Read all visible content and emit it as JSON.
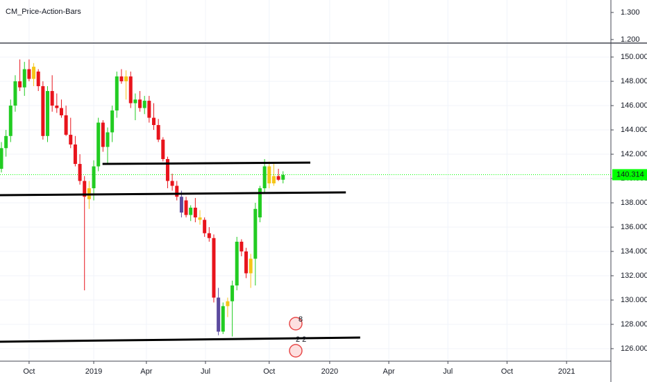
{
  "chart_data": {
    "type": "candlestick",
    "indicator": {
      "title": "CM_Price-Action-Bars",
      "ylim": [
        1.187,
        1.346
      ],
      "yticks": [
        {
          "value": 1.3,
          "label": "1.300"
        },
        {
          "value": 1.2,
          "label": "1.200"
        }
      ]
    },
    "ylim": [
      124.97,
      151.09
    ],
    "yticks": [
      {
        "value": 150,
        "label": "150.000"
      },
      {
        "value": 148,
        "label": "148.000"
      },
      {
        "value": 146,
        "label": "146.000"
      },
      {
        "value": 144,
        "label": "144.000"
      },
      {
        "value": 142,
        "label": "142.000"
      },
      {
        "value": 140,
        "label": "140.000"
      },
      {
        "value": 138,
        "label": "138.000"
      },
      {
        "value": 136,
        "label": "136.000"
      },
      {
        "value": 134,
        "label": "134.000"
      },
      {
        "value": 132,
        "label": "132.000"
      },
      {
        "value": 130,
        "label": "130.000"
      },
      {
        "value": 128,
        "label": "128.000"
      },
      {
        "value": 126,
        "label": "126.000"
      }
    ],
    "xlim": [
      -6.3,
      126
    ],
    "xticks": [
      {
        "value": 0,
        "label": "Oct"
      },
      {
        "value": 14,
        "label": "2019"
      },
      {
        "value": 25.4,
        "label": "Apr"
      },
      {
        "value": 38.2,
        "label": "Jul"
      },
      {
        "value": 52,
        "label": "Oct"
      },
      {
        "value": 65.1,
        "label": "2020"
      },
      {
        "value": 77.9,
        "label": "Apr"
      },
      {
        "value": 90.7,
        "label": "Jul"
      },
      {
        "value": 103.5,
        "label": "Oct"
      },
      {
        "value": 116.4,
        "label": "2021"
      }
    ],
    "grid": true,
    "x": [
      -6,
      -5,
      -4,
      -3,
      -2,
      -1,
      0,
      1,
      2,
      3,
      4,
      5,
      6,
      7,
      8,
      9,
      10,
      11,
      12,
      13,
      14,
      15,
      16,
      17,
      18,
      19,
      20,
      21,
      22,
      23,
      24,
      25,
      26,
      27,
      28,
      29,
      30,
      31,
      32,
      33,
      34,
      35,
      36,
      37,
      38,
      39,
      40,
      41,
      42,
      43,
      44,
      45,
      46,
      47,
      48,
      49,
      50,
      51,
      52,
      53,
      54,
      55
    ],
    "open": [
      140.8,
      142.5,
      143.5,
      146,
      148,
      147.5,
      149,
      148.2,
      148.8,
      147.6,
      143.5,
      147.2,
      146,
      145.8,
      145.2,
      143.6,
      142.8,
      141.2,
      139.8,
      138.3,
      139.2,
      141,
      144.6,
      142.6,
      143.8,
      145.6,
      148.4,
      148,
      148.4,
      146.2,
      146.5,
      145.8,
      146.4,
      145,
      144.4,
      143.2,
      141.6,
      139.8,
      139.4,
      138.5,
      138.2,
      137,
      137.6,
      136.8,
      136.6,
      135.5,
      135.1,
      130.2,
      127.4,
      129.5,
      129.9,
      131.2,
      134.8,
      134,
      132.2,
      133.4,
      136.8,
      139.2,
      141,
      139.6,
      140.2,
      139.9
    ],
    "high": [
      143,
      144,
      146.5,
      148.5,
      149.8,
      149.6,
      149.8,
      149.5,
      149,
      148,
      147.6,
      148.5,
      147,
      146.5,
      146,
      145,
      143.5,
      142,
      140.2,
      139.8,
      141.5,
      145,
      144.8,
      144.2,
      146,
      148.8,
      149,
      148.9,
      148.8,
      147,
      147.2,
      146.8,
      146.8,
      146.2,
      144.9,
      143.4,
      141.8,
      140.4,
      139.8,
      139,
      138.5,
      137.8,
      138.4,
      137.4,
      136.8,
      136,
      135.4,
      131,
      129.8,
      130.2,
      131.6,
      135.2,
      135,
      134.3,
      133.8,
      138,
      139.4,
      141.6,
      141.4,
      141.2,
      140.8,
      140.6
    ],
    "low": [
      140.5,
      141.8,
      143,
      145.5,
      147.2,
      146.8,
      148,
      147.6,
      147.2,
      143.2,
      143,
      145.5,
      145.4,
      145,
      143.5,
      142.5,
      141,
      139.5,
      130.8,
      137.5,
      138.2,
      140.6,
      142.2,
      141.2,
      143,
      145,
      147.8,
      146.5,
      145.8,
      144.8,
      145.5,
      145.3,
      144.6,
      144,
      143,
      141.4,
      139.2,
      139,
      138.2,
      136.8,
      136.8,
      136.5,
      136.4,
      136.2,
      135.2,
      134.8,
      129.8,
      127.1,
      127.2,
      128.6,
      127,
      130.8,
      133.6,
      131.8,
      131,
      131.2,
      136.4,
      138.8,
      139.2,
      139.4,
      139.8,
      139.6
    ],
    "close": [
      142.5,
      143.5,
      146,
      148,
      147.5,
      149,
      148.2,
      149.2,
      147.6,
      143.5,
      147.2,
      146,
      145.8,
      145.2,
      143.6,
      142.8,
      141.2,
      139.8,
      138.5,
      139.2,
      141,
      144.6,
      142.6,
      143.8,
      145.6,
      148.4,
      148,
      148.4,
      146.2,
      146.5,
      145.8,
      146.4,
      145,
      144.4,
      143.2,
      141.6,
      139.8,
      139.4,
      138.5,
      137.2,
      137,
      137.6,
      136.8,
      136.6,
      135.5,
      135.1,
      130.2,
      127.4,
      129.5,
      129.9,
      131.2,
      134.8,
      134,
      132.2,
      133.4,
      137.5,
      139.2,
      141,
      139.6,
      140.2,
      139.9,
      140.3
    ],
    "colors": [
      "#22cc22",
      "#22cc22",
      "#22cc22",
      "#22cc22",
      "#e8141c",
      "#22cc22",
      "#e8141c",
      "#f5c518",
      "#e8141c",
      "#e8141c",
      "#22cc22",
      "#e8141c",
      "#e8141c",
      "#e8141c",
      "#e8141c",
      "#e8141c",
      "#e8141c",
      "#e8141c",
      "#e8141c",
      "#f5c518",
      "#22cc22",
      "#22cc22",
      "#e8141c",
      "#22cc22",
      "#22cc22",
      "#22cc22",
      "#e8141c",
      "#f5c518",
      "#e8141c",
      "#22cc22",
      "#e8141c",
      "#22cc22",
      "#e8141c",
      "#e8141c",
      "#e8141c",
      "#e8141c",
      "#e8141c",
      "#e8141c",
      "#e8141c",
      "#5b4a9e",
      "#e8141c",
      "#22cc22",
      "#e8141c",
      "#f5c518",
      "#e8141c",
      "#e8141c",
      "#e8141c",
      "#5b4a9e",
      "#22cc22",
      "#f5c518",
      "#22cc22",
      "#22cc22",
      "#e8141c",
      "#e8141c",
      "#f5c518",
      "#22cc22",
      "#22cc22",
      "#22cc22",
      "#f5c518",
      "#f5c518",
      "#e8141c",
      "#22cc22"
    ],
    "last_price": 140.314,
    "last_price_color": "#00ff00",
    "trendlines": [
      {
        "x": [
          15.9,
          60.9
        ],
        "y": [
          141.2,
          141.31
        ]
      },
      {
        "x": [
          -6.3,
          68.6
        ],
        "y": [
          138.63,
          138.86
        ]
      },
      {
        "x": [
          -6.3,
          71.7
        ],
        "y": [
          126.57,
          126.91
        ]
      }
    ],
    "annotations": [
      "8",
      "2 2"
    ]
  }
}
